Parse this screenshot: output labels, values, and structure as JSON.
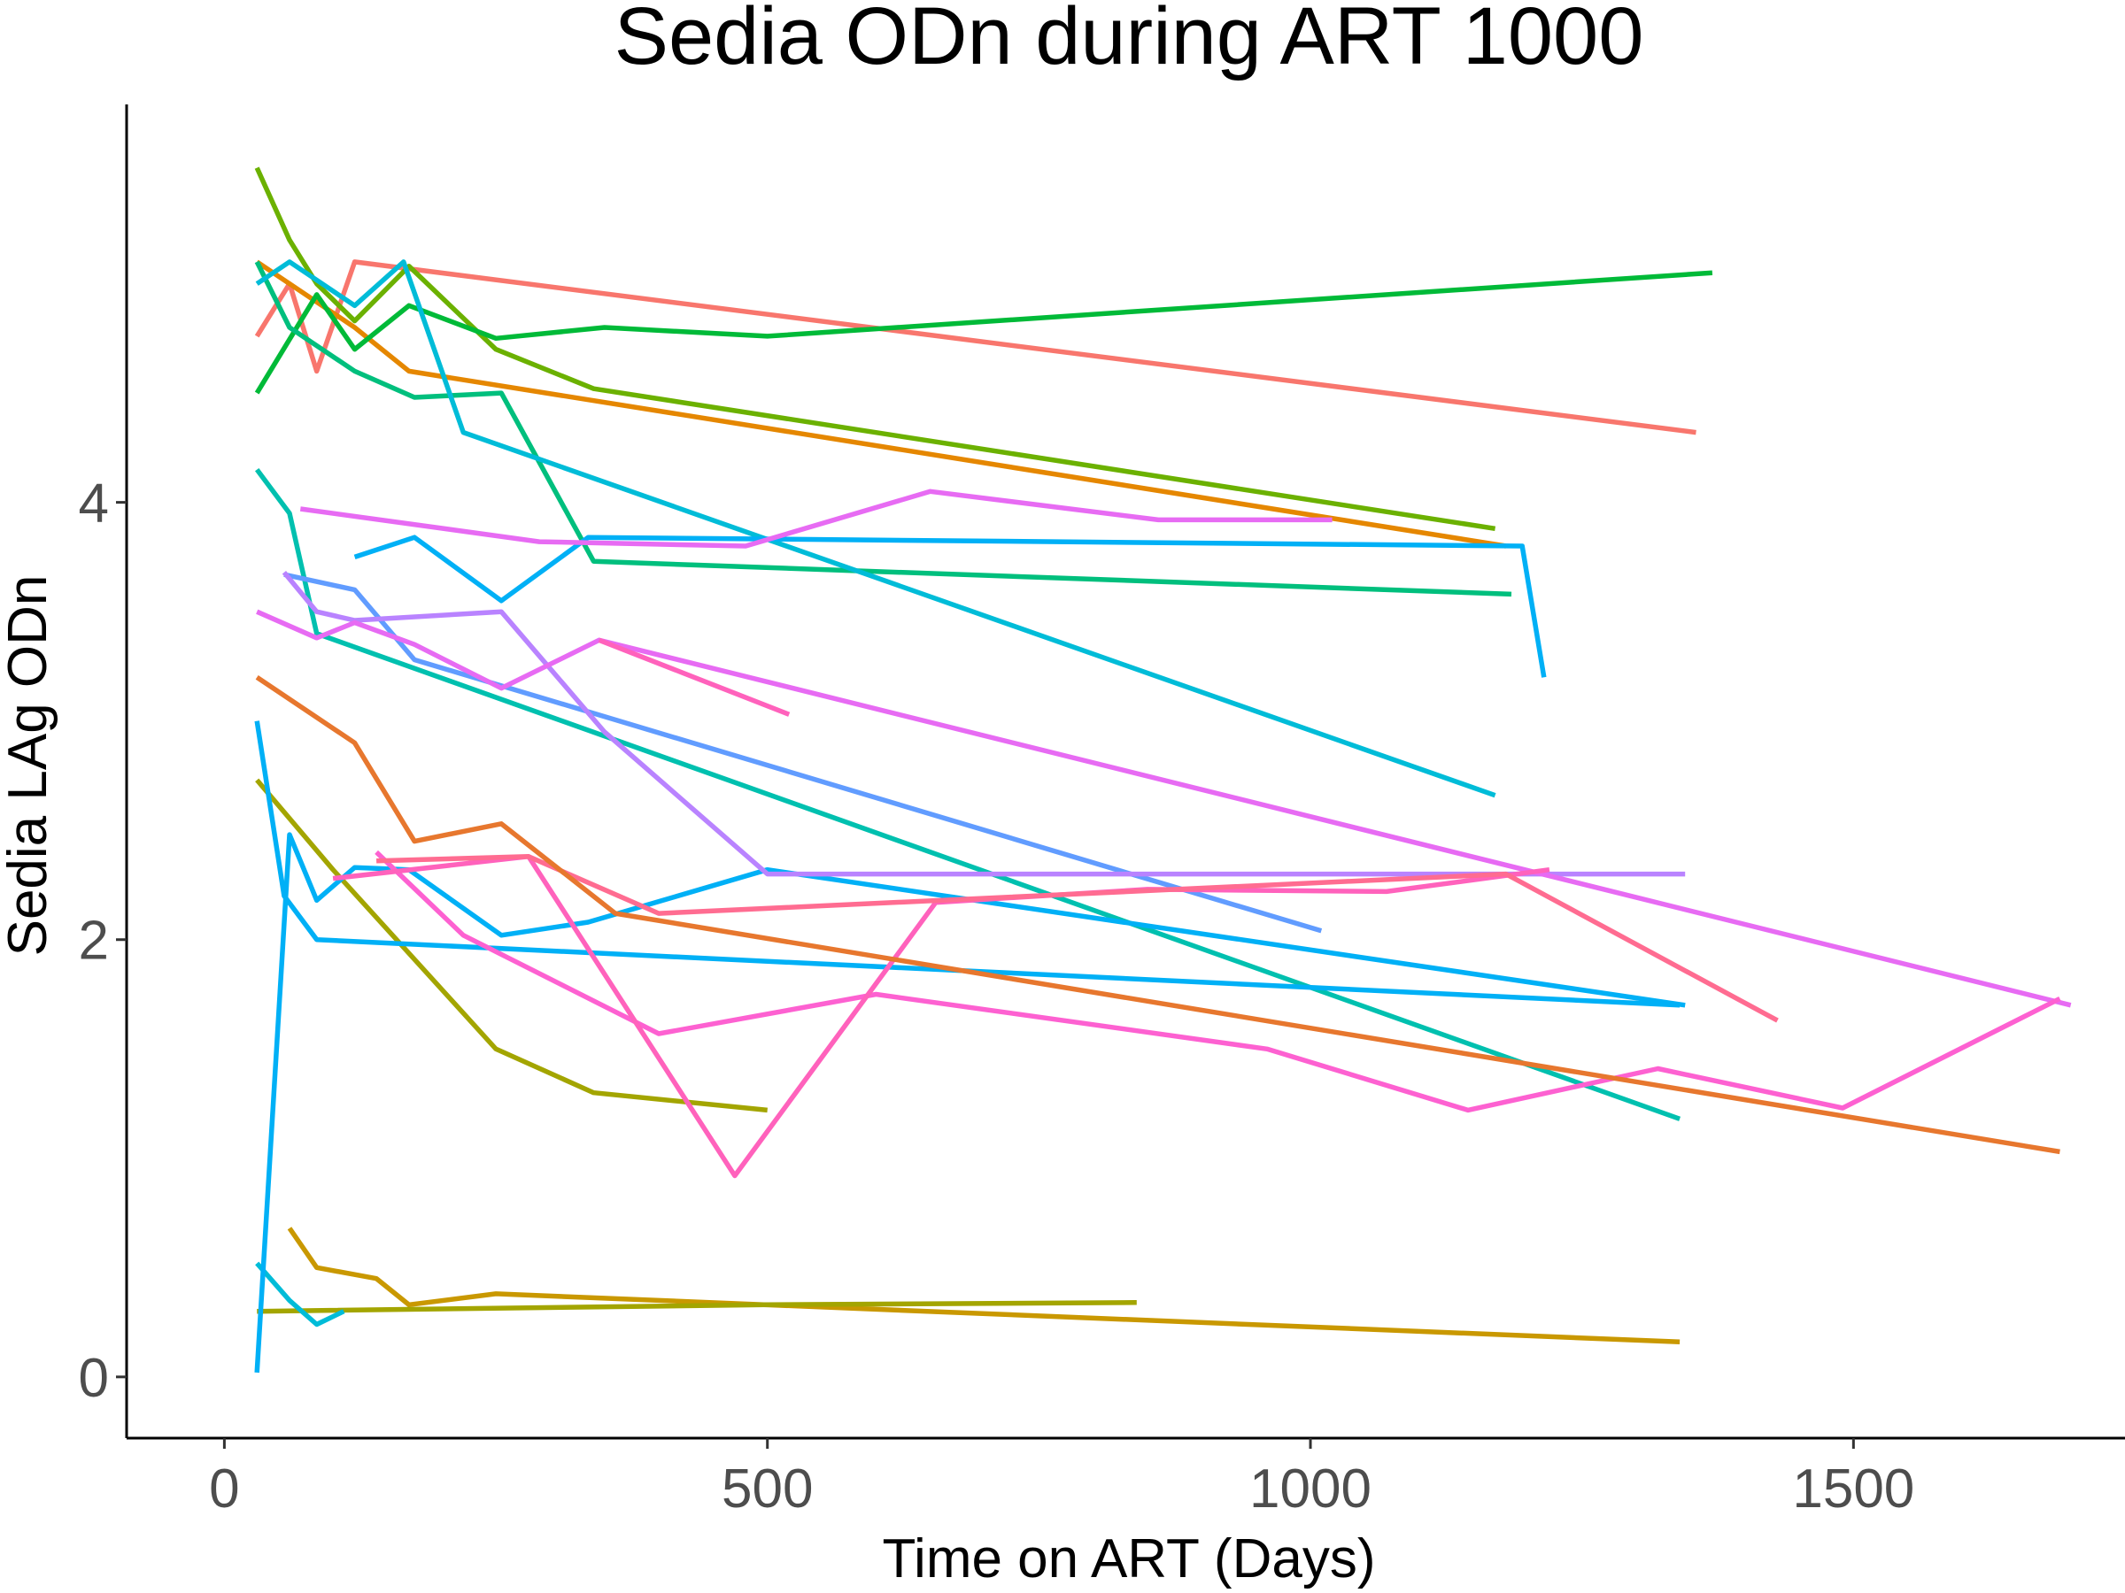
{
  "chart_data": {
    "type": "line",
    "title": "Sedia ODn during ART 1000",
    "xlabel": "Time on ART (Days)",
    "ylabel": "Sedia LAg ODn",
    "xlim": [
      -90,
      1750
    ],
    "ylim": [
      -0.28,
      5.82
    ],
    "xticks": [
      0,
      500,
      1000,
      1500
    ],
    "yticks": [
      0,
      2,
      4
    ],
    "grid": false,
    "legend": "none",
    "series": [
      {
        "color": "#F8766D",
        "x": [
          30,
          60,
          85,
          120,
          1355
        ],
        "y": [
          4.76,
          5.0,
          4.6,
          5.1,
          4.32
        ]
      },
      {
        "color": "#E58700",
        "x": [
          30,
          120,
          170,
          1180
        ],
        "y": [
          5.1,
          4.8,
          4.6,
          3.8
        ]
      },
      {
        "color": "#C99800",
        "x": [
          60,
          85,
          140,
          170,
          250,
          1340
        ],
        "y": [
          0.68,
          0.5,
          0.45,
          0.33,
          0.38,
          0.16
        ]
      },
      {
        "color": "#A3A500",
        "x": [
          30,
          100,
          250,
          340,
          500
        ],
        "y": [
          2.73,
          2.32,
          1.5,
          1.3,
          1.22
        ]
      },
      {
        "color": "#A3A500",
        "x": [
          30,
          500,
          840
        ],
        "y": [
          0.3,
          0.33,
          0.34
        ]
      },
      {
        "color": "#6BB100",
        "x": [
          30,
          60,
          85,
          120,
          170,
          250,
          340,
          1170
        ],
        "y": [
          5.53,
          5.2,
          5.0,
          4.83,
          5.08,
          4.7,
          4.52,
          3.88
        ]
      },
      {
        "color": "#00BA38",
        "x": [
          30,
          85,
          120,
          170,
          250,
          350,
          500,
          1370
        ],
        "y": [
          4.5,
          4.95,
          4.7,
          4.9,
          4.75,
          4.8,
          4.76,
          5.05
        ]
      },
      {
        "color": "#00BF7D",
        "x": [
          30,
          60,
          120,
          175,
          255,
          340,
          1185
        ],
        "y": [
          5.1,
          4.8,
          4.6,
          4.48,
          4.5,
          3.73,
          3.58
        ]
      },
      {
        "color": "#00C0AF",
        "x": [
          30,
          60,
          85,
          1340
        ],
        "y": [
          4.15,
          3.95,
          3.4,
          1.18
        ]
      },
      {
        "color": "#00BCD8",
        "x": [
          30,
          60,
          120,
          165,
          220,
          1170
        ],
        "y": [
          5.0,
          5.1,
          4.9,
          5.1,
          4.32,
          2.66
        ]
      },
      {
        "color": "#00BCD8",
        "x": [
          30,
          60,
          85,
          110
        ],
        "y": [
          0.52,
          0.35,
          0.24,
          0.3
        ]
      },
      {
        "color": "#00B0F6",
        "x": [
          120,
          175,
          255,
          335,
          1195,
          1215
        ],
        "y": [
          3.75,
          3.84,
          3.55,
          3.84,
          3.8,
          3.2
        ]
      },
      {
        "color": "#00B0F6",
        "x": [
          30,
          55,
          85,
          1340
        ],
        "y": [
          3.0,
          2.2,
          2.0,
          1.7
        ]
      },
      {
        "color": "#00B0F6",
        "x": [
          30,
          60,
          85,
          120,
          170,
          255,
          335,
          500,
          1345
        ],
        "y": [
          0.02,
          2.48,
          2.18,
          2.33,
          2.32,
          2.02,
          2.08,
          2.32,
          1.7
        ]
      },
      {
        "color": "#619CFF",
        "x": [
          55,
          120,
          175,
          1010
        ],
        "y": [
          3.67,
          3.6,
          3.28,
          2.04
        ]
      },
      {
        "color": "#B983FF",
        "x": [
          55,
          85,
          120,
          255,
          350,
          500,
          1345
        ],
        "y": [
          3.68,
          3.5,
          3.46,
          3.5,
          2.95,
          2.3,
          2.3
        ]
      },
      {
        "color": "#E76BF3",
        "x": [
          30,
          85,
          120,
          175,
          255,
          345,
          1700
        ],
        "y": [
          3.5,
          3.38,
          3.45,
          3.35,
          3.15,
          3.37,
          1.7
        ]
      },
      {
        "color": "#E76BF3",
        "x": [
          70,
          290,
          480,
          650,
          860,
          1020
        ],
        "y": [
          3.97,
          3.82,
          3.8,
          4.05,
          3.92,
          3.92
        ]
      },
      {
        "color": "#FD61D1",
        "x": [
          140,
          220,
          400,
          600,
          960,
          1145,
          1320,
          1490,
          1690
        ],
        "y": [
          2.4,
          2.02,
          1.57,
          1.75,
          1.5,
          1.22,
          1.41,
          1.23,
          1.73
        ]
      },
      {
        "color": "#FF62BC",
        "x": [
          345,
          520
        ],
        "y": [
          3.37,
          3.03
        ]
      },
      {
        "color": "#FF62BC",
        "x": [
          100,
          280,
          470,
          655,
          850,
          1070,
          1220
        ],
        "y": [
          2.28,
          2.38,
          0.92,
          2.17,
          2.23,
          2.22,
          2.32
        ]
      },
      {
        "color": "#FF6C91",
        "x": [
          140,
          280,
          400,
          1180,
          1430
        ],
        "y": [
          2.36,
          2.38,
          2.12,
          2.3,
          1.63
        ]
      },
      {
        "color": "#E7772E",
        "x": [
          30,
          120,
          175,
          255,
          360,
          1690
        ],
        "y": [
          3.2,
          2.9,
          2.45,
          2.53,
          2.12,
          1.03
        ]
      }
    ]
  }
}
